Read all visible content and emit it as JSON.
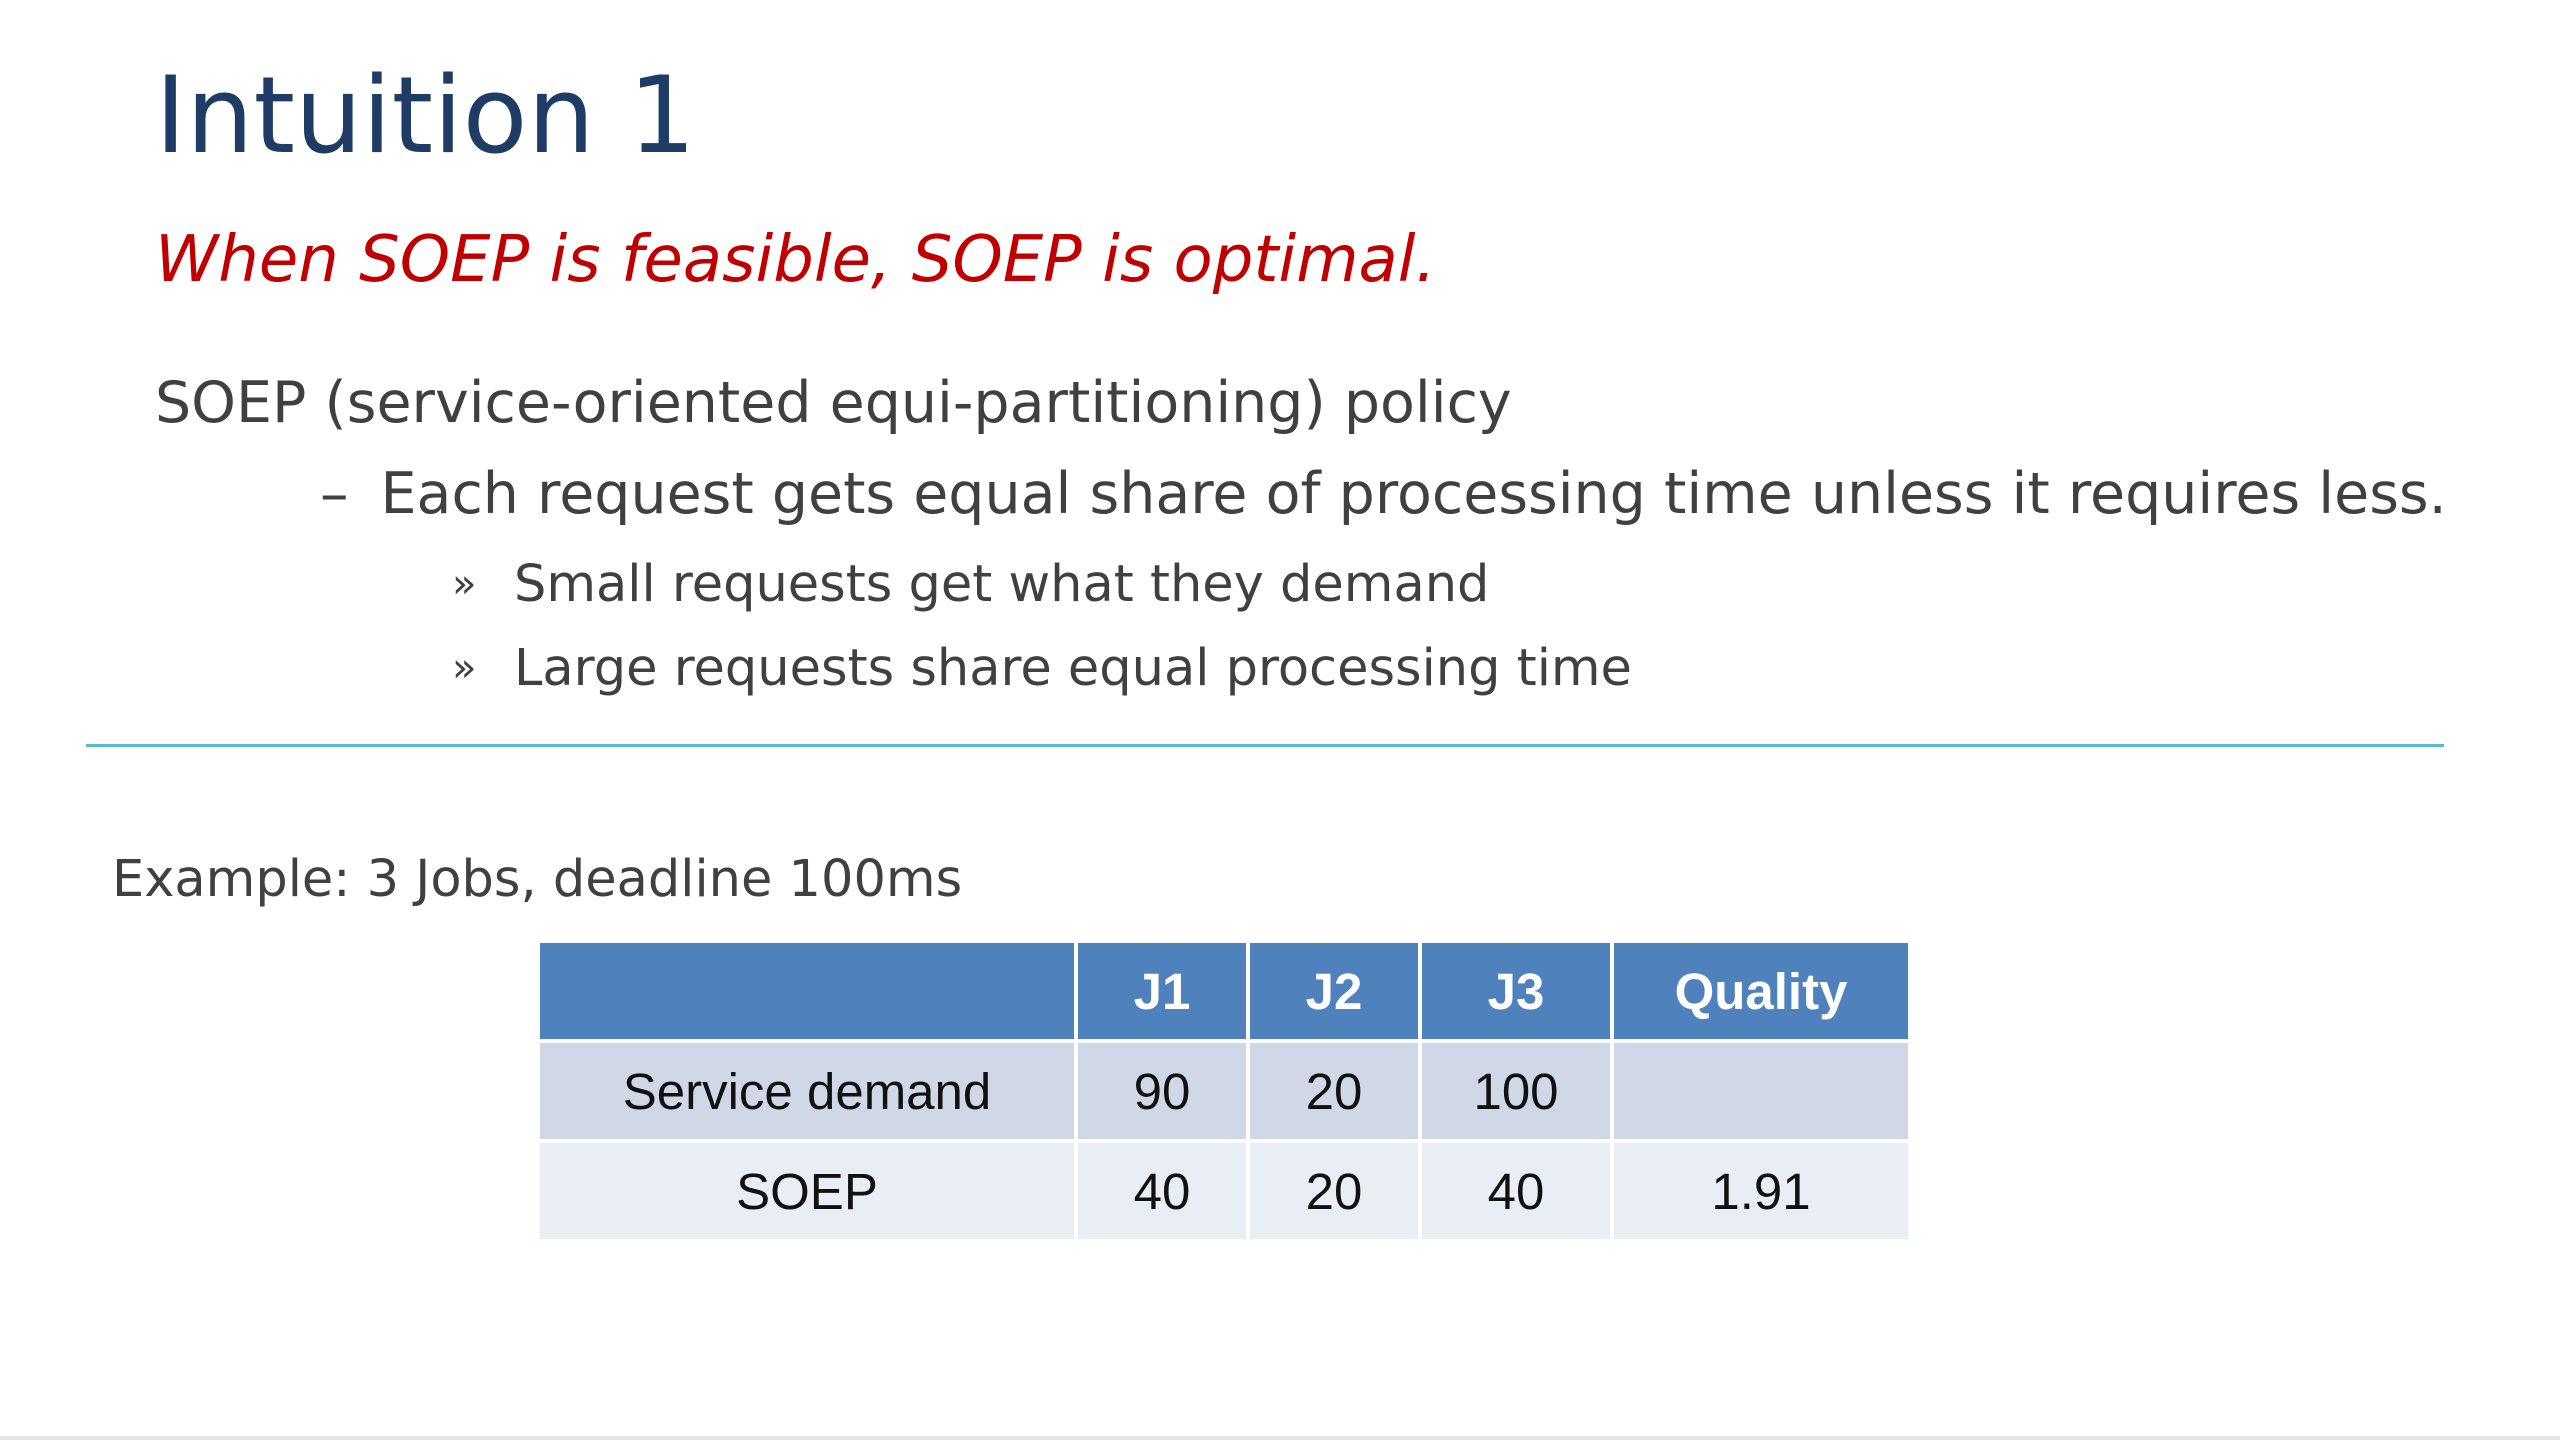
{
  "slide": {
    "title": "Intuition 1",
    "subtitle": "When SOEP is feasible, SOEP is optimal.",
    "bullet_l1": "SOEP (service-oriented equi-partitioning) policy",
    "bullet_l2_marker": "–",
    "bullet_l2": "Each request gets equal share of processing time unless it requires less.",
    "bullet_l3_marker": "»",
    "bullets_l3": [
      "Small requests get what they demand",
      "Large requests share equal processing time"
    ],
    "example": "Example: 3 Jobs, deadline 100ms"
  },
  "table": {
    "headers": [
      "",
      "J1",
      "J2",
      "J3",
      "Quality"
    ],
    "rows": [
      {
        "label": "Service demand",
        "j1": "90",
        "j2": "20",
        "j3": "100",
        "quality": ""
      },
      {
        "label": "SOEP",
        "j1": "40",
        "j2": "20",
        "j3": "40",
        "quality": "1.91"
      }
    ]
  },
  "colors": {
    "title": "#1f3c66",
    "subtitle": "#c00000",
    "body_text": "#404040",
    "divider": "#5bb8cf",
    "table_header": "#4f81bd",
    "table_row1": "#d0d8e8",
    "table_row2": "#e9edf4",
    "highlight_value": "#c00000"
  }
}
